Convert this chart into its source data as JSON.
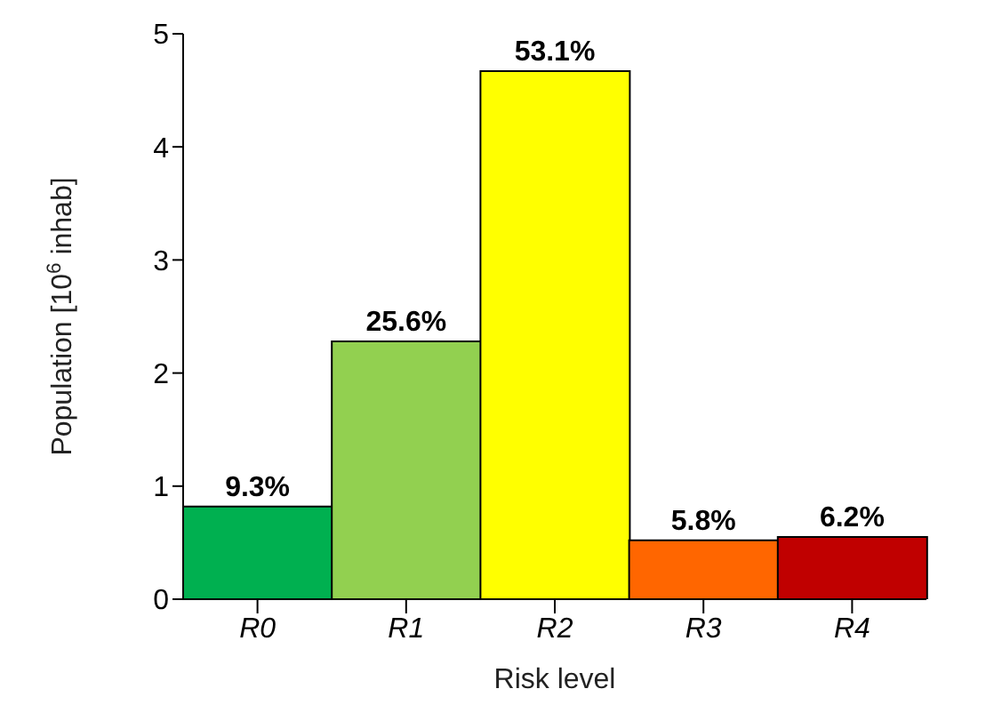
{
  "chart_data": {
    "type": "bar",
    "xlabel": "Risk level",
    "ylabel": "Population [10$^{6}$ inhab]",
    "categories": [
      "R0",
      "R1",
      "R2",
      "R3",
      "R4"
    ],
    "values": [
      0.82,
      2.28,
      4.67,
      0.52,
      0.55
    ],
    "colors": [
      "#00b050",
      "#92d050",
      "#ffff00",
      "#ff6600",
      "#c00000"
    ],
    "annotations": [
      {
        "text": "9.3%",
        "x": "R0",
        "y": 0.82
      },
      {
        "text": "25.6%",
        "x": "R1",
        "y": 2.28
      },
      {
        "text": "53.1%",
        "x": "R2",
        "y": 4.67
      },
      {
        "text": "5.8%",
        "x": "R3",
        "y": 0.52
      },
      {
        "text": "6.2%",
        "x": "R4",
        "y": 0.55
      }
    ],
    "ylim": [
      0,
      5
    ],
    "yticks": [
      0,
      1,
      2,
      3,
      4,
      5
    ],
    "grid": false,
    "legend": false
  }
}
